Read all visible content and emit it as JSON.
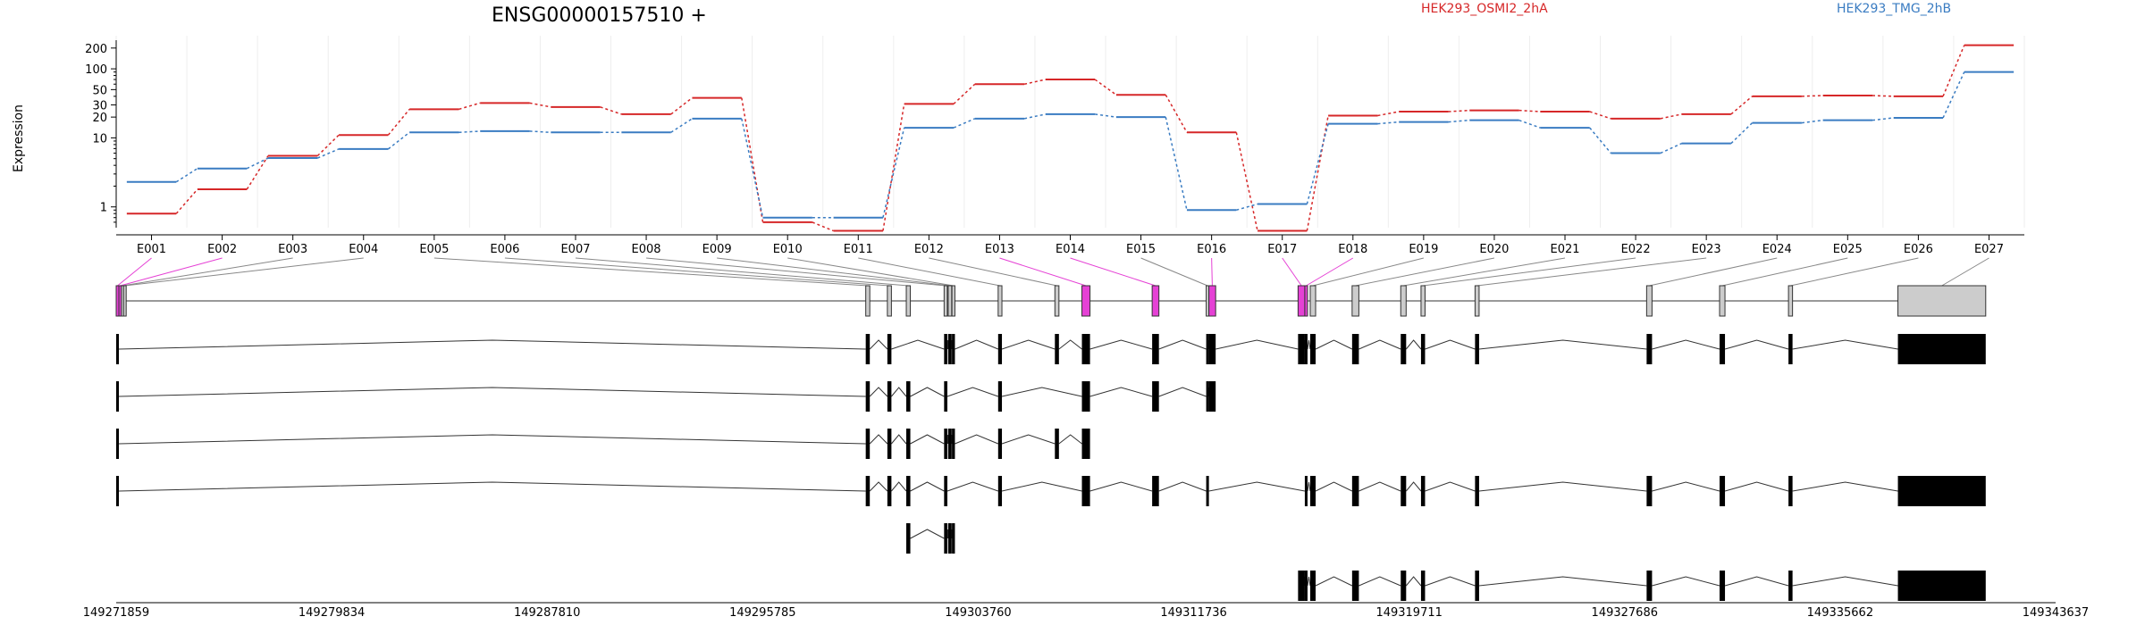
{
  "chart_data": {
    "type": "line",
    "title": "ENSG00000157510 +",
    "ylabel": "Expression",
    "xlabel": "",
    "y_scale": "log",
    "ylim": [
      0.5,
      260
    ],
    "y_ticks": [
      {
        "value": 1,
        "label": "1"
      },
      {
        "value": 10,
        "label": "10"
      },
      {
        "value": 20,
        "label": "20"
      },
      {
        "value": 30,
        "label": "30"
      },
      {
        "value": 50,
        "label": "50"
      },
      {
        "value": 100,
        "label": "100"
      },
      {
        "value": 200,
        "label": "200"
      }
    ],
    "grid": "vertical",
    "legend_position": "top",
    "categories": [
      "E001",
      "E002",
      "E003",
      "E004",
      "E005",
      "E006",
      "E007",
      "E008",
      "E009",
      "E010",
      "E011",
      "E012",
      "E013",
      "E014",
      "E015",
      "E016",
      "E017",
      "E018",
      "E019",
      "E020",
      "E021",
      "E022",
      "E023",
      "E024",
      "E025",
      "E026",
      "E027"
    ],
    "series": [
      {
        "name": "HEK293_OSMI2_2hA",
        "color": "#d62728",
        "values": [
          0.8,
          1.8,
          5.5,
          11,
          26,
          32,
          28,
          22,
          38,
          0.6,
          0.45,
          31,
          60,
          70,
          42,
          12,
          0.45,
          21,
          24,
          25,
          24,
          19,
          22,
          40,
          41,
          40,
          220
        ]
      },
      {
        "name": "HEK293_TMG_2hB",
        "color": "#3a7cc2",
        "values": [
          2.3,
          3.6,
          5.1,
          6.9,
          12,
          12.5,
          12,
          12,
          19,
          0.7,
          0.7,
          14,
          19,
          22,
          20,
          0.9,
          1.1,
          16,
          17,
          18,
          14,
          6,
          8.3,
          16.5,
          18,
          19.5,
          90
        ]
      }
    ],
    "highlight_color": "#e541d5",
    "exon_fill_color": "#cccccc",
    "genome_start": 149271859,
    "genome_end": 149343637,
    "genome_axis_labels": [
      "149271859",
      "149279834",
      "149287810",
      "149295785",
      "149303760",
      "149311736",
      "149319711",
      "149327686",
      "149335662",
      "149343637"
    ],
    "exons": [
      {
        "id": "E001",
        "start": 149271859,
        "end": 149271950,
        "highlight": true
      },
      {
        "id": "E002",
        "start": 149271960,
        "end": 149272040,
        "highlight": true
      },
      {
        "id": "E003",
        "start": 149272050,
        "end": 149272120,
        "highlight": false
      },
      {
        "id": "E004",
        "start": 149272130,
        "end": 149272200,
        "highlight": false
      },
      {
        "id": "E005",
        "start": 149299600,
        "end": 149299750,
        "highlight": false
      },
      {
        "id": "E006",
        "start": 149300400,
        "end": 149300550,
        "highlight": false
      },
      {
        "id": "E007",
        "start": 149301100,
        "end": 149301250,
        "highlight": false
      },
      {
        "id": "E008",
        "start": 149302500,
        "end": 149302620,
        "highlight": false
      },
      {
        "id": "E009",
        "start": 149302650,
        "end": 149302780,
        "highlight": false
      },
      {
        "id": "E010",
        "start": 149302790,
        "end": 149302900,
        "highlight": false
      },
      {
        "id": "E011",
        "start": 149304500,
        "end": 149304640,
        "highlight": false
      },
      {
        "id": "E012",
        "start": 149306600,
        "end": 149306750,
        "highlight": false
      },
      {
        "id": "E013",
        "start": 149307600,
        "end": 149307900,
        "highlight": true
      },
      {
        "id": "E014",
        "start": 149310200,
        "end": 149310450,
        "highlight": true
      },
      {
        "id": "E015",
        "start": 149312200,
        "end": 149312300,
        "highlight": false
      },
      {
        "id": "E016",
        "start": 149312300,
        "end": 149312550,
        "highlight": true
      },
      {
        "id": "E017",
        "start": 149315600,
        "end": 149315850,
        "highlight": true
      },
      {
        "id": "E018",
        "start": 149315850,
        "end": 149315950,
        "highlight": true
      },
      {
        "id": "E019",
        "start": 149316050,
        "end": 149316250,
        "highlight": false
      },
      {
        "id": "E020",
        "start": 149317600,
        "end": 149317850,
        "highlight": false
      },
      {
        "id": "E021",
        "start": 149319400,
        "end": 149319600,
        "highlight": false
      },
      {
        "id": "E022",
        "start": 149320150,
        "end": 149320300,
        "highlight": false
      },
      {
        "id": "E023",
        "start": 149322150,
        "end": 149322300,
        "highlight": false
      },
      {
        "id": "E024",
        "start": 149328500,
        "end": 149328700,
        "highlight": false
      },
      {
        "id": "E025",
        "start": 149331200,
        "end": 149331400,
        "highlight": false
      },
      {
        "id": "E026",
        "start": 149333750,
        "end": 149333900,
        "highlight": false
      },
      {
        "id": "E027",
        "start": 149337800,
        "end": 149341050,
        "highlight": false
      }
    ],
    "transcripts": [
      [
        "E001",
        "E005",
        "E006",
        "E008",
        "E009",
        "E010",
        "E011",
        "E012",
        "E013",
        "E014",
        "E015",
        "E016",
        "E017",
        "E018",
        "E019",
        "E020",
        "E021",
        "E022",
        "E023",
        "E024",
        "E025",
        "E026",
        "E027"
      ],
      [
        "E001",
        "E005",
        "E006",
        "E007",
        "E008",
        "E011",
        "E013",
        "E014",
        "E015",
        "E016"
      ],
      [
        "E001",
        "E005",
        "E006",
        "E007",
        "E008",
        "E009",
        "E010",
        "E011",
        "E012",
        "E013"
      ],
      [
        "E001",
        "E005",
        "E006",
        "E007",
        "E008",
        "E011",
        "E013",
        "E014",
        "E015",
        "E018",
        "E019",
        "E020",
        "E021",
        "E022",
        "E023",
        "E024",
        "E025",
        "E026",
        "E027"
      ],
      [
        "E007",
        "E008",
        "E009",
        "E010"
      ],
      [
        "E017",
        "E018",
        "E019",
        "E020",
        "E021",
        "E022",
        "E023",
        "E024",
        "E025",
        "E026",
        "E027"
      ]
    ]
  }
}
